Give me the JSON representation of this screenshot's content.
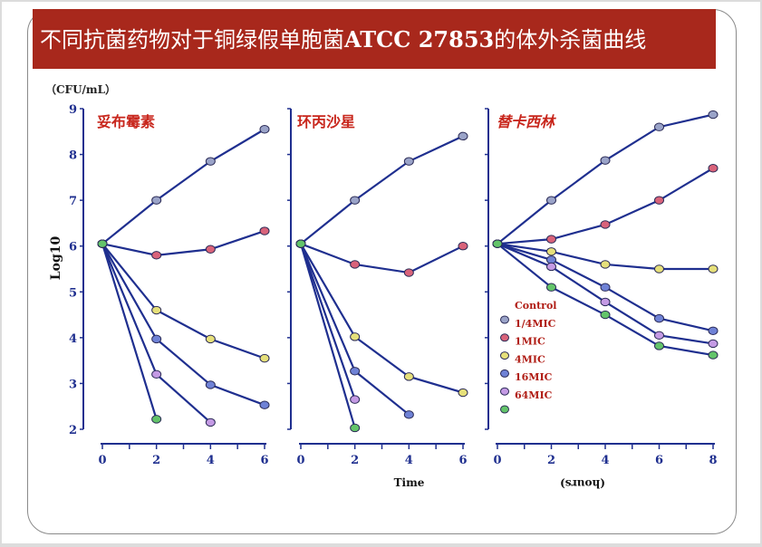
{
  "title": {
    "prefix": "不同抗菌药物对于铜绿假单胞菌",
    "strain": "ATCC 27853",
    "suffix": "的体外杀菌曲线"
  },
  "unit_label": "（CFU/mL）",
  "colors": {
    "title_bg": "#a8281c",
    "axis": "#1f2f8f",
    "line": "#1f2f8f",
    "panel_title": "#c8261c",
    "legend_text": "#b01c14"
  },
  "legend": {
    "items": [
      "Control",
      "1/4MIC",
      "1MIC",
      "4MIC",
      "16MIC",
      "64MIC"
    ],
    "colors": [
      "#9aa3c8",
      "#d9637a",
      "#e6e07a",
      "#6f82d6",
      "#c49ae4",
      "#63c46a"
    ]
  },
  "chart_data": [
    {
      "type": "line",
      "title": "妥布霉素",
      "ylabel": "Log10",
      "ylim": [
        2,
        9
      ],
      "y_ticks": [
        "9",
        "8",
        "7",
        "6",
        "5",
        "4",
        "3",
        "2"
      ],
      "xlim": [
        0,
        6
      ],
      "x_ticks": [
        "0",
        "2",
        "4",
        "6"
      ],
      "series": [
        {
          "name": "Control",
          "points": [
            [
              0,
              6.05
            ],
            [
              2,
              7.0
            ],
            [
              4,
              7.85
            ],
            [
              6,
              8.55
            ]
          ]
        },
        {
          "name": "1/4MIC",
          "points": [
            [
              0,
              6.05
            ],
            [
              2,
              5.8
            ],
            [
              4,
              5.93
            ],
            [
              6,
              6.33
            ]
          ]
        },
        {
          "name": "1MIC",
          "points": [
            [
              0,
              6.05
            ],
            [
              2,
              4.6
            ],
            [
              4,
              3.97
            ],
            [
              6,
              3.55
            ]
          ]
        },
        {
          "name": "4MIC",
          "points": [
            [
              0,
              6.05
            ],
            [
              2,
              3.97
            ],
            [
              4,
              2.97
            ],
            [
              6,
              2.53
            ]
          ]
        },
        {
          "name": "16MIC",
          "points": [
            [
              0,
              6.05
            ],
            [
              2,
              3.2
            ],
            [
              4,
              2.15
            ]
          ]
        },
        {
          "name": "64MIC",
          "points": [
            [
              0,
              6.05
            ],
            [
              2,
              2.22
            ]
          ]
        }
      ]
    },
    {
      "type": "line",
      "title": "环丙沙星",
      "ylim": [
        2,
        9
      ],
      "xlim": [
        0,
        6
      ],
      "x_ticks": [
        "0",
        "2",
        "4",
        "6"
      ],
      "xlabel": "Time",
      "series": [
        {
          "name": "Control",
          "points": [
            [
              0,
              6.05
            ],
            [
              2,
              7.0
            ],
            [
              4,
              7.85
            ],
            [
              6,
              8.4
            ]
          ]
        },
        {
          "name": "1/4MIC",
          "points": [
            [
              0,
              6.05
            ],
            [
              2,
              5.6
            ],
            [
              4,
              5.42
            ],
            [
              6,
              6.0
            ]
          ]
        },
        {
          "name": "1MIC",
          "points": [
            [
              0,
              6.05
            ],
            [
              2,
              4.02
            ],
            [
              4,
              3.15
            ],
            [
              6,
              2.8
            ]
          ]
        },
        {
          "name": "4MIC",
          "points": [
            [
              0,
              6.05
            ],
            [
              2,
              3.27
            ],
            [
              4,
              2.32
            ]
          ]
        },
        {
          "name": "16MIC",
          "points": [
            [
              0,
              6.05
            ],
            [
              2,
              2.65
            ]
          ]
        },
        {
          "name": "64MIC",
          "points": [
            [
              0,
              6.05
            ],
            [
              2,
              2.03
            ]
          ]
        }
      ]
    },
    {
      "type": "line",
      "title": "替卡西林",
      "ylim": [
        2,
        9
      ],
      "xlim": [
        0,
        8
      ],
      "x_ticks": [
        "0",
        "2",
        "4",
        "6",
        "8"
      ],
      "xlabel": "(hours)",
      "series": [
        {
          "name": "Control",
          "points": [
            [
              0,
              6.05
            ],
            [
              2,
              7.0
            ],
            [
              4,
              7.87
            ],
            [
              6,
              8.6
            ],
            [
              8,
              8.87
            ]
          ]
        },
        {
          "name": "1/4MIC",
          "points": [
            [
              0,
              6.05
            ],
            [
              2,
              6.15
            ],
            [
              4,
              6.47
            ],
            [
              6,
              7.0
            ],
            [
              8,
              7.7
            ]
          ]
        },
        {
          "name": "1MIC",
          "points": [
            [
              0,
              6.05
            ],
            [
              2,
              5.88
            ],
            [
              4,
              5.6
            ],
            [
              6,
              5.5
            ],
            [
              8,
              5.5
            ]
          ]
        },
        {
          "name": "4MIC",
          "points": [
            [
              0,
              6.05
            ],
            [
              2,
              5.7
            ],
            [
              4,
              5.1
            ],
            [
              6,
              4.42
            ],
            [
              8,
              4.15
            ]
          ]
        },
        {
          "name": "16MIC",
          "points": [
            [
              0,
              6.05
            ],
            [
              2,
              5.55
            ],
            [
              4,
              4.78
            ],
            [
              6,
              4.05
            ],
            [
              8,
              3.87
            ]
          ]
        },
        {
          "name": "64MIC",
          "points": [
            [
              0,
              6.05
            ],
            [
              2,
              5.1
            ],
            [
              4,
              4.5
            ],
            [
              6,
              3.82
            ],
            [
              8,
              3.62
            ]
          ]
        }
      ]
    }
  ]
}
